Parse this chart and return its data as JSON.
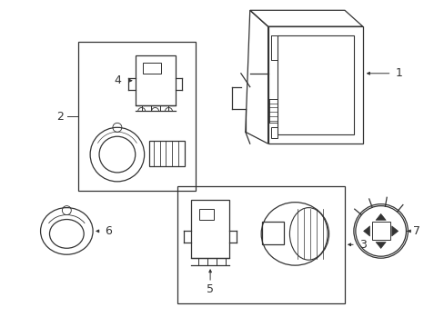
{
  "background_color": "#ffffff",
  "line_color": "#333333",
  "fig_w": 4.89,
  "fig_h": 3.6,
  "dpi": 100
}
